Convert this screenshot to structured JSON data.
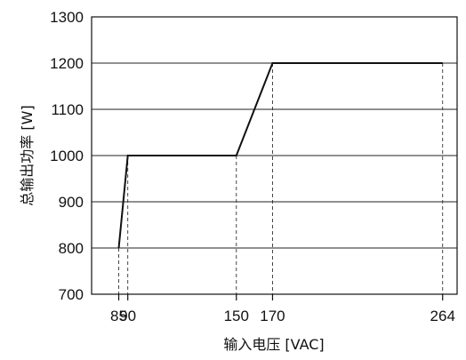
{
  "chart_data": {
    "type": "line",
    "title": "",
    "xlabel": "输入电压 [VAC]",
    "ylabel": "总输出功率 [W]",
    "x": [
      85,
      90,
      150,
      170,
      264
    ],
    "y": [
      800,
      1000,
      1000,
      1200,
      1200
    ],
    "xticks": [
      85,
      90,
      150,
      170,
      264
    ],
    "xtick_labels": [
      "85",
      "90",
      "150",
      "170",
      "264"
    ],
    "yticks": [
      700,
      800,
      900,
      1000,
      1100,
      1200,
      1300
    ],
    "ytick_labels": [
      "700",
      "800",
      "900",
      "1000",
      "1100",
      "1200",
      "1300"
    ],
    "xlim": [
      70,
      272
    ],
    "ylim": [
      700,
      1300
    ],
    "grid": "horizontal",
    "drop_lines": "dashed vertical from each data point to x-axis",
    "colors": {
      "line": "#111111",
      "grid": "#222222",
      "axis": "#111111"
    }
  }
}
